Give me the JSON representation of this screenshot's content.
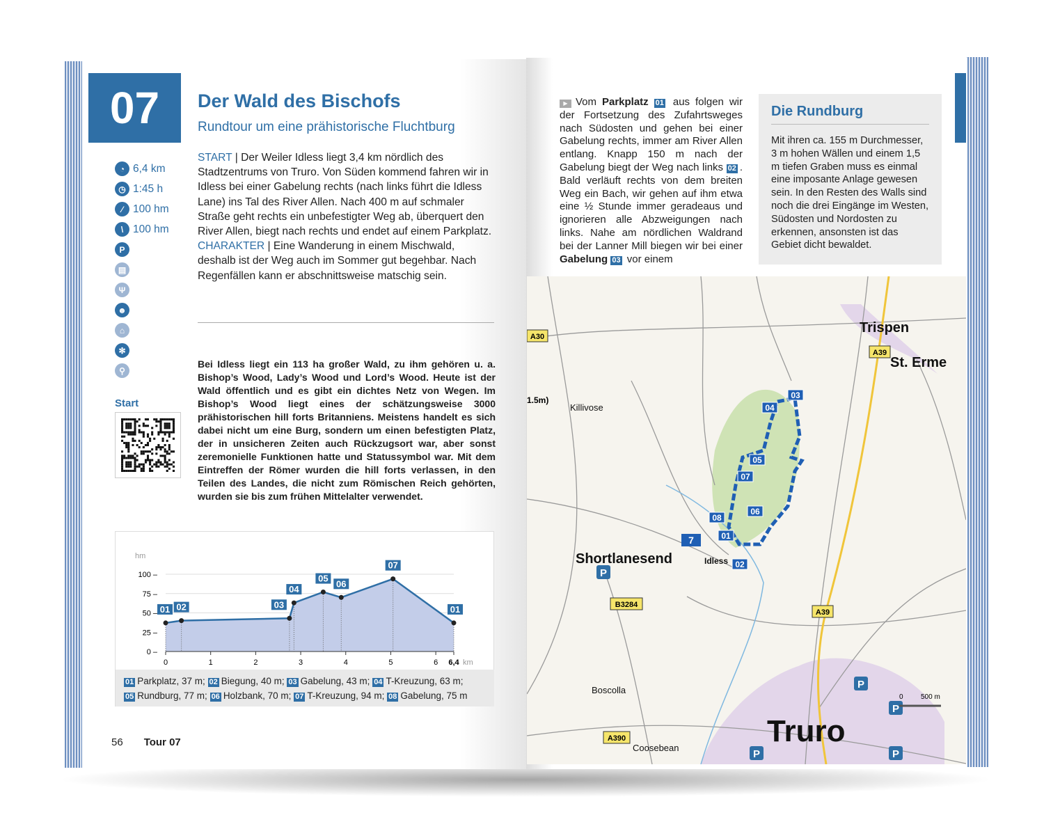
{
  "tour": {
    "number": "07",
    "title": "Der Wald des Bischofs",
    "subtitle": "Rundtour um eine prähistorische Fluchtburg"
  },
  "stats": [
    {
      "icon": "distance-icon",
      "value": "6,4 km"
    },
    {
      "icon": "clock-icon",
      "value": "1:45 h"
    },
    {
      "icon": "ascent-icon",
      "value": "100 hm"
    },
    {
      "icon": "descent-icon",
      "value": "100 hm"
    }
  ],
  "amenity_icons": [
    "parking-icon",
    "bus-icon",
    "restaurant-icon",
    "child-friendly-icon",
    "cable-car-icon",
    "winter-icon",
    "bicycle-icon"
  ],
  "intro": {
    "start_label": "START",
    "start_text": " | Der Weiler Idless liegt 3,4 km nördlich des Stadtzentrums von Truro. Von Süden kommend fahren wir in Idless bei einer  Gabelung rechts (nach links führt die Idless Lane) ins Tal des River Allen. Nach 400 m auf schmaler Straße geht rechts ein unbefestigter Weg ab, überquert den River Allen, biegt nach rechts und endet auf einem Parkplatz.",
    "charakter_label": "CHARAKTER",
    "charakter_text": " | Eine Wanderung in einem Mischwald, deshalb ist der Weg auch im Sommer gut begehbar. Nach Regenfällen kann er abschnittsweise matschig sein."
  },
  "body": "Bei Idless liegt ein 113 ha großer Wald, zu ihm gehören u. a. Bishop’s Wood, Lady’s Wood und Lord’s Wood. Heute ist der Wald öffentlich und es gibt ein dichtes Netz von Wegen. Im Bishop’s Wood liegt eines der schätzungsweise 3000 prähistorischen hill forts Britanniens. Meistens handelt es sich dabei nicht um eine Burg, sondern um einen befestigten Platz, der in unsicheren Zeiten auch Rückzugsort war, aber sonst zeremonielle Funktionen hatte und Statussymbol war. Mit dem Eintreffen der Römer wurden die hill forts verlassen, in den Teilen des Landes, die nicht zum Römischen Reich gehörten, wurden sie bis zum frühen Mittelalter verwendet.",
  "start_label": "Start",
  "chart_data": {
    "type": "area",
    "ylabel": "hm",
    "xlabel": "km",
    "xlim": [
      0,
      6.4
    ],
    "ylim": [
      0,
      100
    ],
    "yticks": [
      "0",
      "25",
      "50",
      "75",
      "100"
    ],
    "xticks": [
      "0",
      "1",
      "2",
      "3",
      "4",
      "5",
      "6",
      "6,4"
    ],
    "points": [
      {
        "label": "01",
        "x": 0,
        "y": 37
      },
      {
        "label": "02",
        "x": 0.35,
        "y": 40
      },
      {
        "label": "03",
        "x": 2.75,
        "y": 43
      },
      {
        "label": "04",
        "x": 2.85,
        "y": 63
      },
      {
        "label": "05",
        "x": 3.5,
        "y": 77
      },
      {
        "label": "06",
        "x": 3.9,
        "y": 70
      },
      {
        "label": "07",
        "x": 5.05,
        "y": 94
      },
      {
        "label": "01",
        "x": 6.4,
        "y": 37
      }
    ],
    "line_color": "#2f6fa6",
    "fill_color": "#c3cde9"
  },
  "legend": [
    {
      "n": "01",
      "t": "Parkplatz, 37 m;"
    },
    {
      "n": "02",
      "t": "Biegung, 40 m;"
    },
    {
      "n": "03",
      "t": "Gabelung, 43 m;"
    },
    {
      "n": "04",
      "t": "T-Kreuzung, 63 m;"
    },
    {
      "n": "05",
      "t": "Rundburg, 77 m;"
    },
    {
      "n": "06",
      "t": "Holzbank, 70 m;"
    },
    {
      "n": "07",
      "t": "T-Kreuzung, 94 m;"
    },
    {
      "n": "08",
      "t": "Gabelung, 75 m"
    }
  ],
  "folio": {
    "page": "56",
    "tour": "Tour 07"
  },
  "route": {
    "p1": "Vom ",
    "b1": "Parkplatz",
    "n1": "01",
    "p2": " aus folgen wir der Fortsetzung des Zufahrtsweges nach Südosten und gehen bei einer Gabelung rechts, immer am River Allen entlang. Knapp 150 m nach der Gabelung biegt der Weg nach links ",
    "n2": "02",
    "p3": ". Bald verläuft rechts von dem breiten Weg ein Bach, wir gehen auf ihm etwa eine ½ Stunde immer geradeaus und ignorieren alle Abzweigungen nach links. Nahe am nördlichen Waldrand bei der Lanner Mill biegen wir bei einer ",
    "b2": "Gabelung",
    "n3": "03",
    "p4": " vor einem"
  },
  "infobox": {
    "title": "Die Rundburg",
    "text": "Mit ihren ca. 155 m Durchmesser, 3 m hohen Wällen und einem 1,5 m tiefen Graben muss es einmal eine imposante Anlage gewesen sein. In den Resten des Walls sind noch die drei Eingänge im Westen, Südosten und Nordosten zu erkennen, ansonsten ist das Gebiet dicht bewaldet."
  },
  "map": {
    "places": [
      "Trispen",
      "St. Erme",
      "Killivose",
      "Shortlanesend",
      "Idless",
      "Boscolla",
      "Coosebean",
      "Truro"
    ],
    "roads": [
      "A30",
      "A39",
      "A39",
      "B3284",
      "A390"
    ],
    "fragment": "1.5m)",
    "tour_marker": "7",
    "waypoints": [
      "01",
      "02",
      "03",
      "04",
      "05",
      "06",
      "07",
      "08"
    ],
    "scale": [
      "0",
      "500 m"
    ],
    "route_color": "#1f5fb4"
  }
}
